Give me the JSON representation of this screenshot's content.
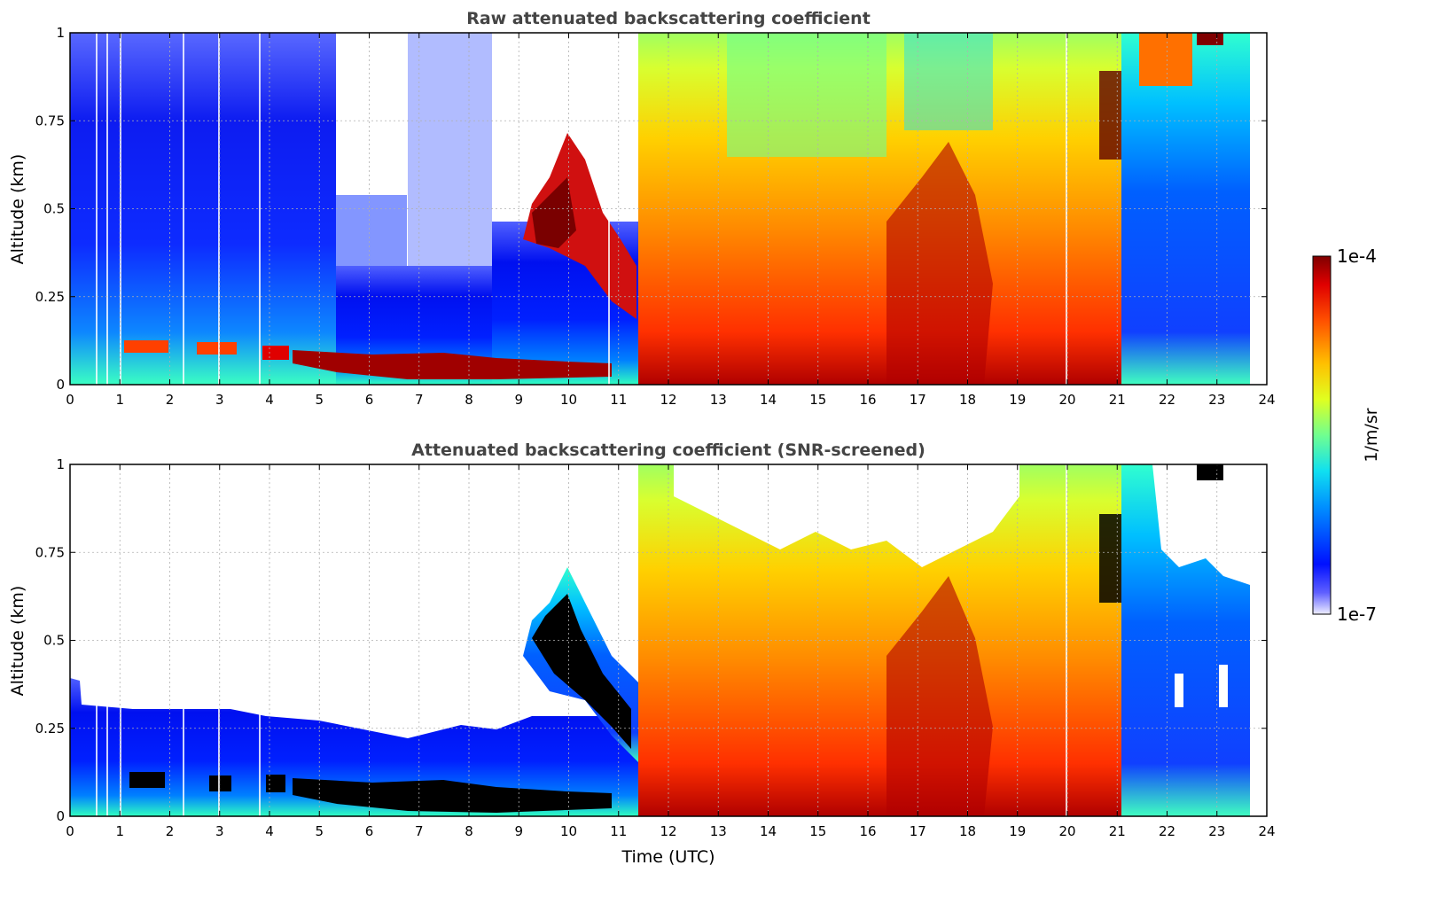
{
  "chart_data": [
    {
      "type": "heatmap",
      "title": "Raw attenuated backscattering coefficient",
      "xlabel": "",
      "ylabel": "Altitude (km)",
      "xlim": [
        0,
        24
      ],
      "ylim": [
        0,
        1
      ],
      "x_ticks": [
        "0",
        "1",
        "2",
        "3",
        "4",
        "5",
        "6",
        "7",
        "8",
        "9",
        "10",
        "11",
        "12",
        "13",
        "14",
        "15",
        "16",
        "17",
        "18",
        "19",
        "20",
        "21",
        "22",
        "23",
        "24"
      ],
      "y_ticks": [
        "0",
        "0.25",
        "0.5",
        "0.75",
        "1"
      ],
      "grid": true
    },
    {
      "type": "heatmap",
      "title": "Attenuated backscattering coefficient (SNR-screened)",
      "xlabel": "Time (UTC)",
      "ylabel": "Altitude (km)",
      "xlim": [
        0,
        24
      ],
      "ylim": [
        0,
        1
      ],
      "x_ticks": [
        "0",
        "1",
        "2",
        "3",
        "4",
        "5",
        "6",
        "7",
        "8",
        "9",
        "10",
        "11",
        "12",
        "13",
        "14",
        "15",
        "16",
        "17",
        "18",
        "19",
        "20",
        "21",
        "22",
        "23",
        "24"
      ],
      "y_ticks": [
        "0",
        "0.25",
        "0.5",
        "0.75",
        "1"
      ],
      "grid": true
    }
  ],
  "colorbar": {
    "label": "1/m/sr",
    "max_label": "1e-4",
    "min_label": "1e-7",
    "scale": "log",
    "range": [
      1e-07,
      0.0001
    ]
  }
}
